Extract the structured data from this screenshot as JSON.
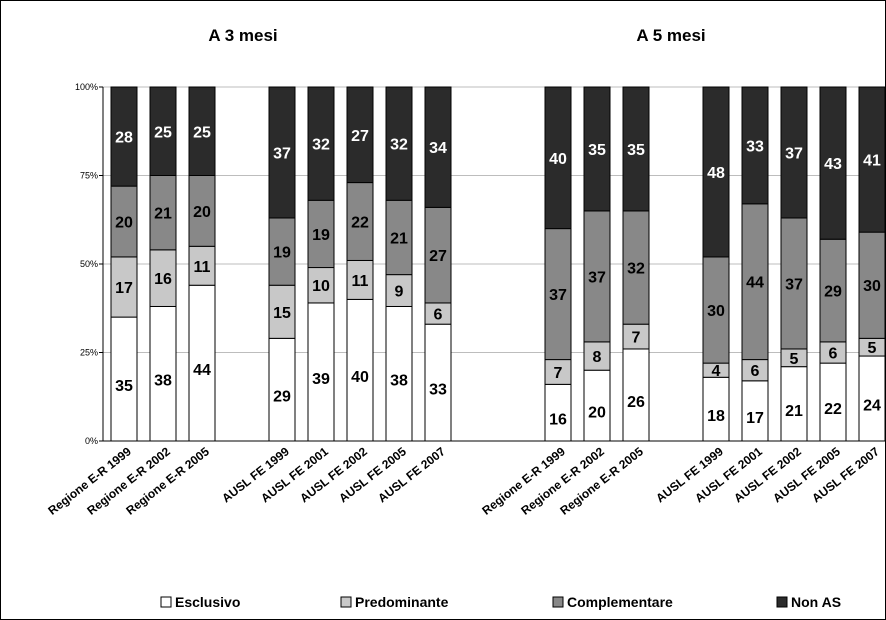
{
  "colors": {
    "Esclusivo": "#ffffff",
    "Predominante": "#c8c8c8",
    "Complementare": "#888888",
    "Non AS": "#2b2b2b"
  },
  "chart_data": [
    {
      "type": "bar",
      "stacked": "percent",
      "title": "A 3 mesi",
      "categories": [
        "Regione E-R 1999",
        "Regione E-R 2002",
        "Regione E-R 2005",
        "AUSL FE 1999",
        "AUSL FE 2001",
        "AUSL FE 2002",
        "AUSL FE 2005",
        "AUSL FE 2007"
      ],
      "series": [
        {
          "name": "Esclusivo",
          "values": [
            35,
            38,
            44,
            29,
            39,
            40,
            38,
            33
          ]
        },
        {
          "name": "Predominante",
          "values": [
            17,
            16,
            11,
            15,
            10,
            11,
            9,
            6
          ]
        },
        {
          "name": "Complementare",
          "values": [
            20,
            21,
            20,
            19,
            19,
            22,
            21,
            27
          ]
        },
        {
          "name": "Non AS",
          "values": [
            28,
            25,
            25,
            37,
            32,
            27,
            32,
            34
          ]
        }
      ],
      "yticks": [
        "0%",
        "25%",
        "50%",
        "75%",
        "100%"
      ],
      "ylim": [
        0,
        100
      ],
      "grid": true
    },
    {
      "type": "bar",
      "stacked": "percent",
      "title": "A 5 mesi",
      "categories": [
        "Regione E-R 1999",
        "Regione E-R 2002",
        "Regione E-R 2005",
        "AUSL FE 1999",
        "AUSL FE 2001",
        "AUSL FE 2002",
        "AUSL FE 2005",
        "AUSL FE 2007"
      ],
      "series": [
        {
          "name": "Esclusivo",
          "values": [
            16,
            20,
            26,
            18,
            17,
            21,
            22,
            24
          ]
        },
        {
          "name": "Predominante",
          "values": [
            7,
            8,
            7,
            4,
            6,
            5,
            6,
            5
          ]
        },
        {
          "name": "Complementare",
          "values": [
            37,
            37,
            32,
            30,
            44,
            37,
            29,
            30
          ]
        },
        {
          "name": "Non AS",
          "values": [
            40,
            35,
            35,
            48,
            33,
            37,
            43,
            41
          ]
        }
      ],
      "ylim": [
        0,
        100
      ],
      "grid": true
    }
  ],
  "legend": {
    "position": "bottom",
    "items": [
      "Esclusivo",
      "Predominante",
      "Complementare",
      "Non AS"
    ]
  }
}
